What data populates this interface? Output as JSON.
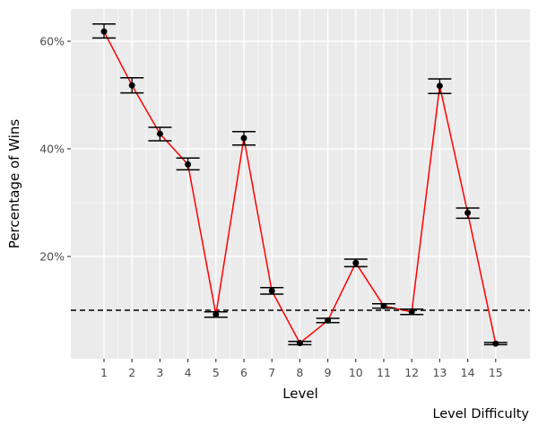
{
  "chart_data": {
    "type": "line",
    "title": "",
    "xlabel": "Level",
    "ylabel": "Percentage of Wins",
    "caption": "Level Difficulty",
    "x_categories": [
      "1",
      "2",
      "3",
      "4",
      "5",
      "6",
      "7",
      "8",
      "9",
      "10",
      "11",
      "12",
      "13",
      "14",
      "15"
    ],
    "y_ticks": [
      20,
      40,
      60
    ],
    "y_tick_labels": [
      "20%",
      "40%",
      "60%"
    ],
    "ylim": [
      1,
      66
    ],
    "grid": true,
    "reference_line": {
      "y": 10,
      "style": "dashed",
      "color": "#000000"
    },
    "line_color": "#ff0000",
    "point_color": "#000000",
    "errorbar_color": "#000000",
    "panel_background": "#ebebeb",
    "series": [
      {
        "values": [
          61.8,
          51.8,
          42.8,
          37.1,
          9.2,
          42.0,
          13.6,
          3.9,
          8.1,
          18.8,
          10.8,
          9.7,
          51.7,
          28.1,
          3.8
        ],
        "lower": [
          60.6,
          50.4,
          41.5,
          36.1,
          8.7,
          40.7,
          13.0,
          3.6,
          7.7,
          18.1,
          10.4,
          9.2,
          50.3,
          27.1,
          3.6
        ],
        "upper": [
          63.2,
          53.2,
          44.0,
          38.3,
          9.7,
          43.2,
          14.2,
          4.2,
          8.5,
          19.5,
          11.2,
          10.2,
          53.0,
          29.0,
          4.0
        ]
      }
    ]
  }
}
